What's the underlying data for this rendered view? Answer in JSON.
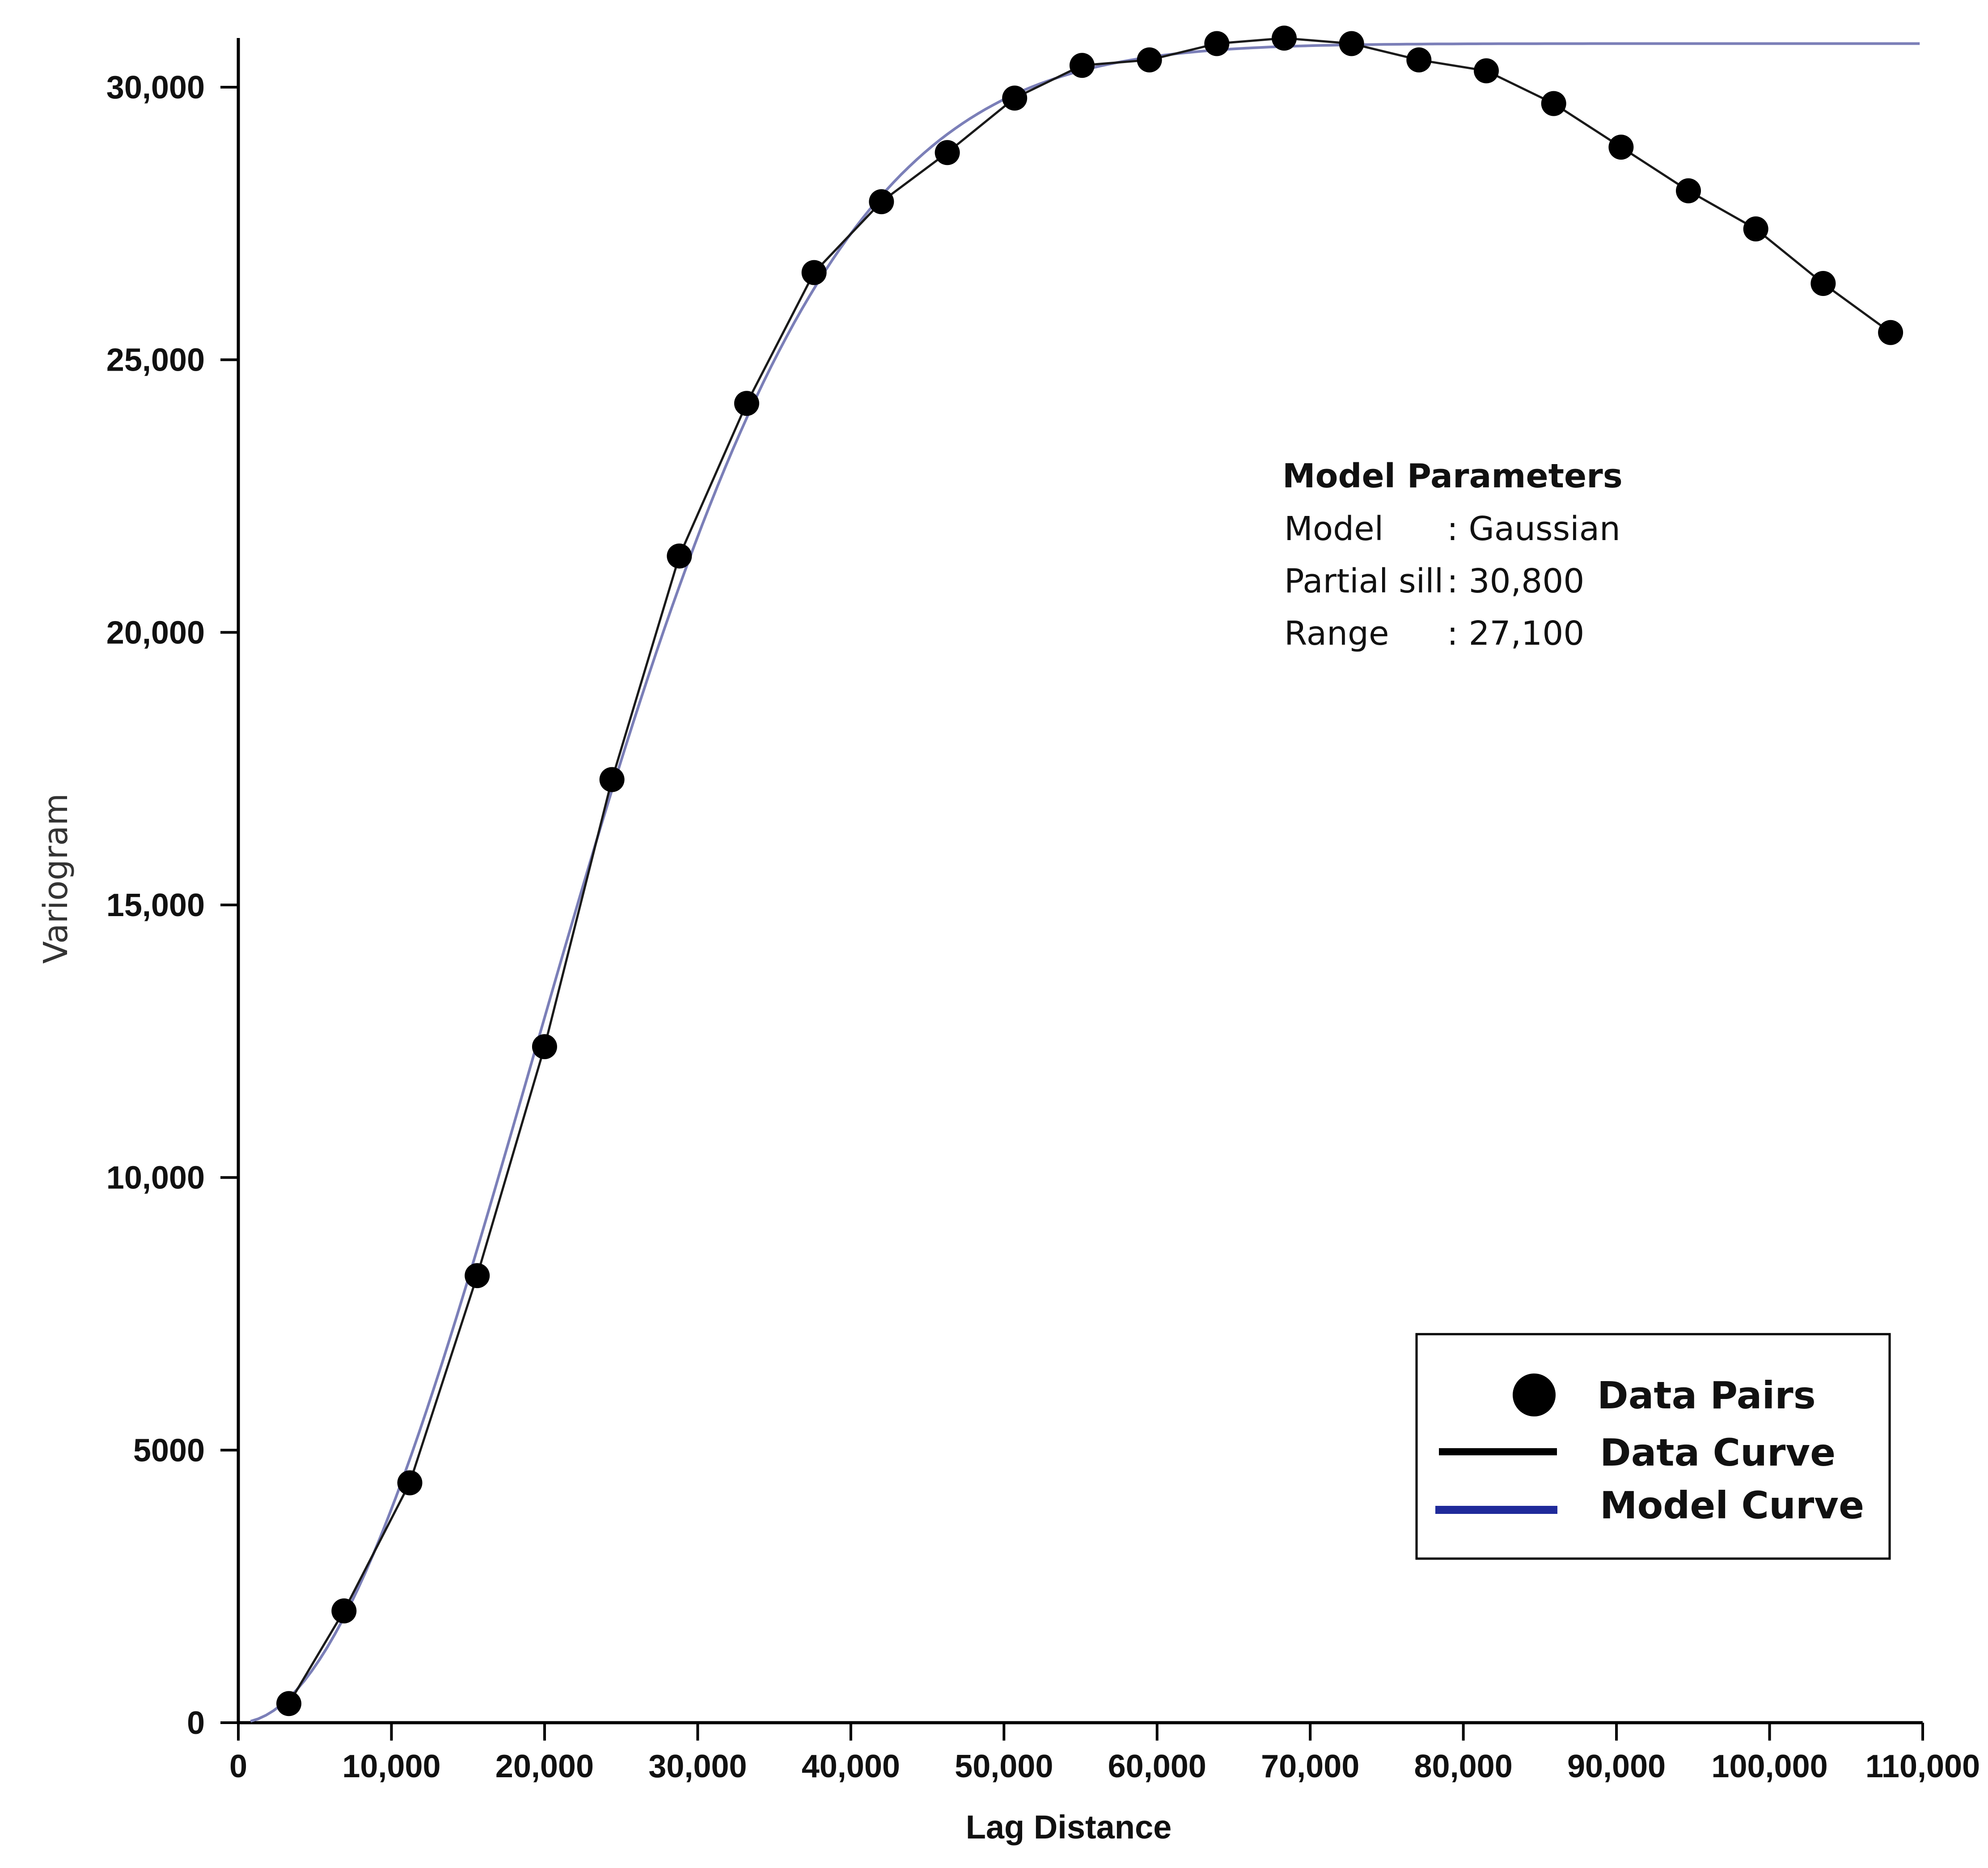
{
  "chart_data": {
    "type": "scatter",
    "xlabel": "Lag Distance",
    "ylabel": "Variogram",
    "xlim": [
      0,
      110000
    ],
    "ylim": [
      0,
      30000
    ],
    "x_ticks": [
      0,
      10000,
      20000,
      30000,
      40000,
      50000,
      60000,
      70000,
      80000,
      90000,
      100000,
      110000
    ],
    "x_tick_labels": [
      "0",
      "10,000",
      "20,000",
      "30,000",
      "40,000",
      "50,000",
      "60,000",
      "70,000",
      "80,000",
      "90,000",
      "100,000",
      "110,000"
    ],
    "y_ticks": [
      0,
      5000,
      10000,
      15000,
      20000,
      25000,
      30000
    ],
    "y_tick_labels": [
      "0",
      "5000",
      "10,000",
      "15,000",
      "20,000",
      "25,000",
      "30,000"
    ],
    "grid": false,
    "legend_position": "bottom-right",
    "series": [
      {
        "name": "Data Pairs",
        "kind": "points",
        "color": "#000000",
        "x": [
          3300,
          6900,
          11200,
          15600,
          20000,
          24400,
          28800,
          33200,
          37600,
          42000,
          46300,
          50700,
          55100,
          59500,
          63900,
          68300,
          72700,
          77100,
          81500,
          85900,
          90300,
          94700,
          99100,
          103500,
          107900
        ],
        "y": [
          350,
          2050,
          4400,
          8200,
          12400,
          17300,
          21400,
          24200,
          26600,
          27900,
          28800,
          29800,
          30400,
          30500,
          30800,
          30900,
          30800,
          30500,
          30300,
          29700,
          28900,
          28100,
          27400,
          26400,
          25500
        ]
      },
      {
        "name": "Data Curve",
        "kind": "line",
        "color": "#1a1a1a"
      },
      {
        "name": "Model Curve",
        "kind": "line",
        "color": "#7b7fb8"
      }
    ],
    "model": {
      "title": "Model Parameters",
      "lines": [
        {
          "label": "Model",
          "value": ": Gaussian"
        },
        {
          "label": "Partial sill",
          "value": ": 30,800"
        },
        {
          "label": "Range",
          "value": ": 27,100"
        }
      ],
      "partial_sill": 30800,
      "range": 27100
    }
  }
}
